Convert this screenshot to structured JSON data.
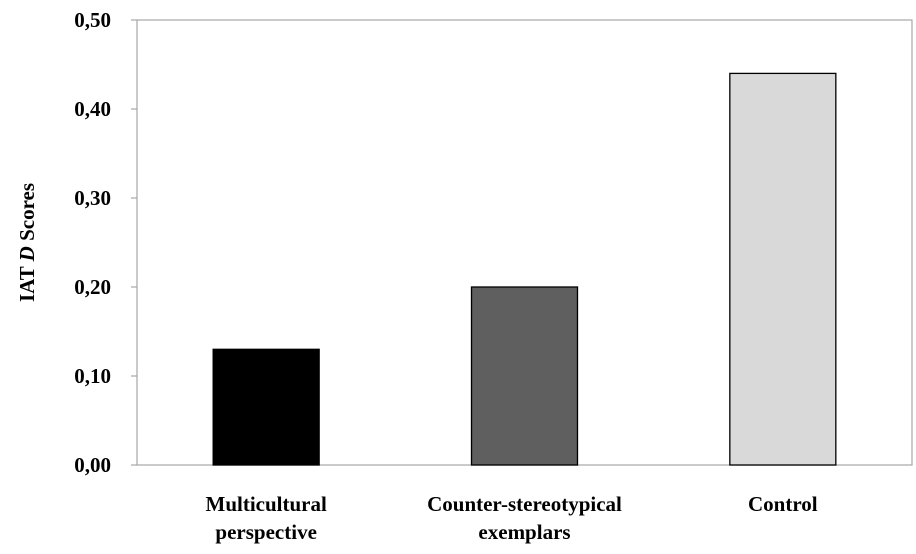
{
  "chart_data": {
    "type": "bar",
    "categories": [
      [
        "Multicultural",
        "perspective"
      ],
      [
        "Counter-stereotypical",
        "exemplars"
      ],
      [
        "Control"
      ]
    ],
    "values": [
      0.13,
      0.2,
      0.44
    ],
    "bar_colors": [
      "#000000",
      "#5f5f5f",
      "#d9d9d9"
    ],
    "ylabel_parts": [
      {
        "text": "IAT ",
        "italic": false
      },
      {
        "text": "D",
        "italic": true
      },
      {
        "text": " Scores",
        "italic": false
      }
    ],
    "ylim": [
      0,
      0.5
    ],
    "yticks": [
      "0,00",
      "0,10",
      "0,20",
      "0,30",
      "0,40",
      "0,50"
    ],
    "ytick_values": [
      0,
      0.1,
      0.2,
      0.3,
      0.4,
      0.5
    ],
    "grid": false,
    "legend": "none"
  }
}
